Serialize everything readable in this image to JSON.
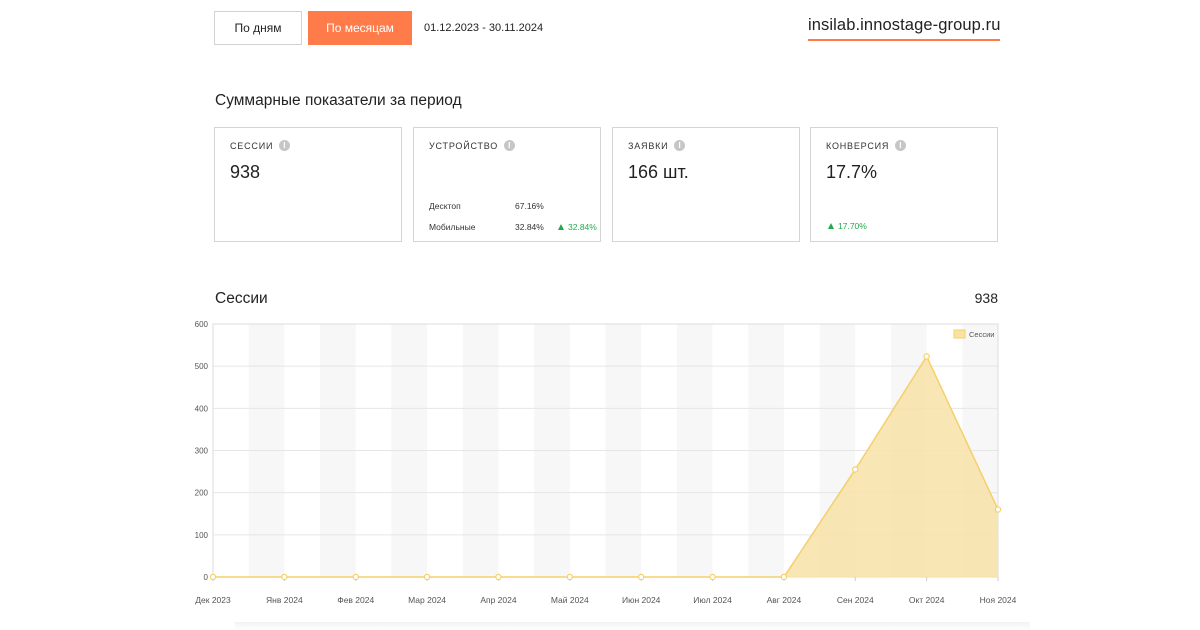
{
  "toolbar": {
    "days_label": "По дням",
    "months_label": "По месяцам",
    "date_range": "01.12.2023 - 30.11.2024",
    "site": "insilab.innostage-group.ru"
  },
  "summary": {
    "title": "Суммарные показатели за период",
    "sessions": {
      "label": "СЕССИИ",
      "value": "938"
    },
    "device": {
      "label": "УСТРОЙСТВО",
      "desktop_label": "Десктоп",
      "desktop_value": "67.16%",
      "mobile_label": "Мобильные",
      "mobile_value": "32.84%",
      "mobile_delta": "32.84%"
    },
    "requests": {
      "label": "ЗАЯВКИ",
      "value": "166 шт."
    },
    "conversion": {
      "label": "КОНВЕРСИЯ",
      "value": "17.7%",
      "delta": "17.70%"
    }
  },
  "chart_section": {
    "title": "Сессии",
    "total": "938"
  },
  "colors": {
    "accent": "#ff7b4a",
    "series_line": "#f5cf6a",
    "series_fill": "#f7e3a8",
    "positive": "#22aa4a"
  },
  "icons": {
    "info": "info-icon",
    "trend_up": "triangle-up-icon"
  },
  "chart_data": {
    "type": "area",
    "categories": [
      "Дек 2023",
      "Янв 2024",
      "Фев 2024",
      "Мар 2024",
      "Апр 2024",
      "Май 2024",
      "Июн 2024",
      "Июл 2024",
      "Авг 2024",
      "Сен 2024",
      "Окт 2024",
      "Ноя 2024"
    ],
    "series": [
      {
        "name": "Сессии",
        "values": [
          0,
          0,
          0,
          0,
          0,
          0,
          0,
          0,
          0,
          255,
          523,
          160
        ]
      }
    ],
    "yticks": [
      0,
      100,
      200,
      300,
      400,
      500,
      600
    ],
    "ylim": [
      0,
      600
    ],
    "legend": "top-right",
    "grid": true
  }
}
